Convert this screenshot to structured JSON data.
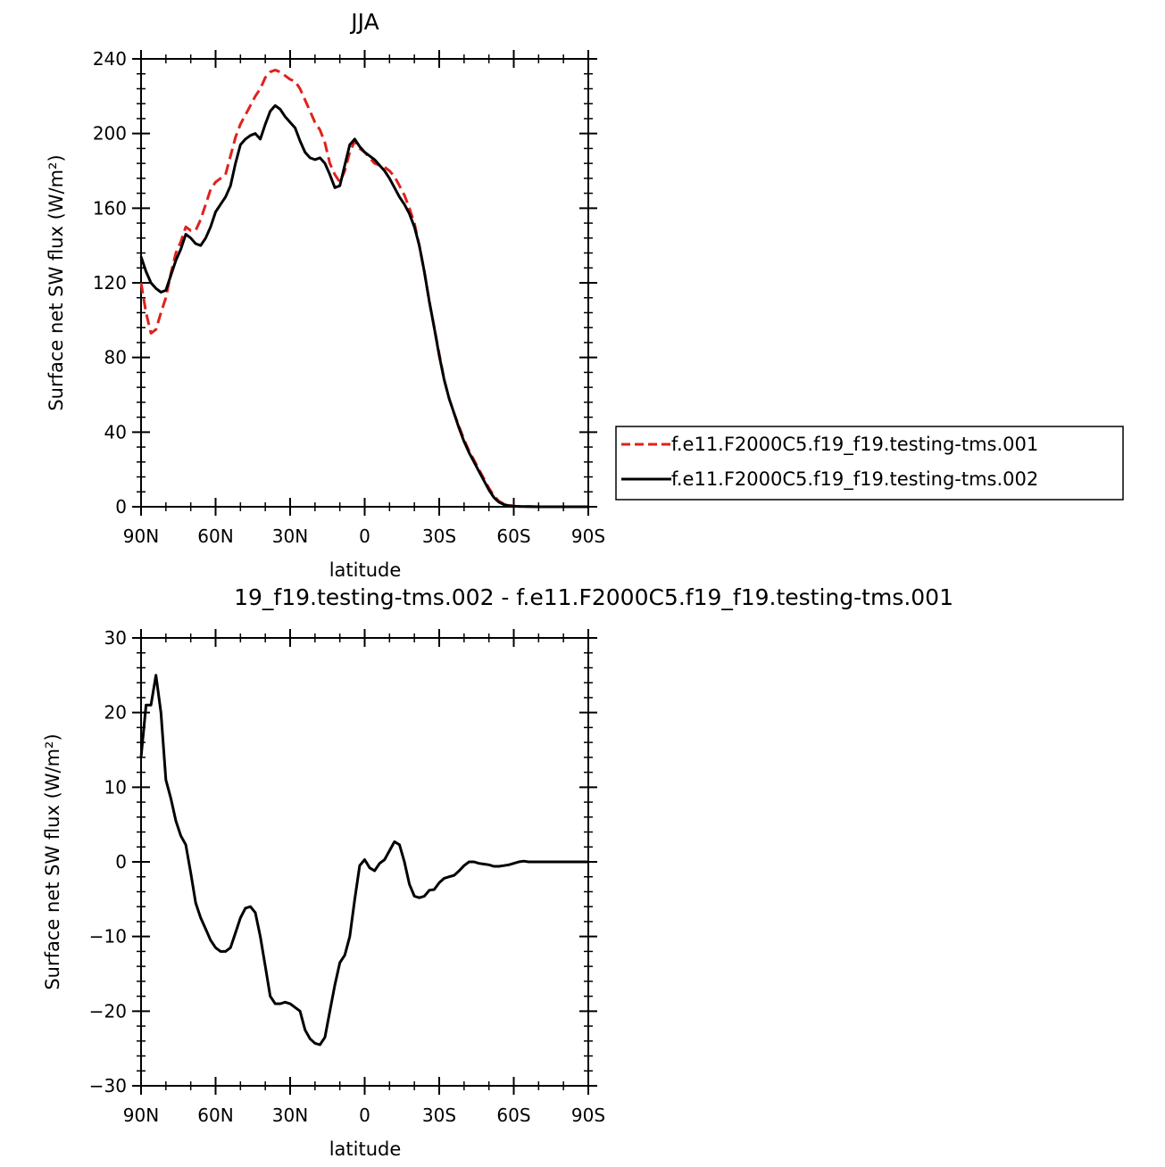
{
  "chart_data": [
    {
      "type": "line",
      "title": "JJA",
      "xlabel": "latitude",
      "ylabel": "Surface net SW flux (W/m²)",
      "xlim": [
        90,
        -90
      ],
      "ylim": [
        0,
        240
      ],
      "x_ticks": [
        90,
        60,
        30,
        0,
        -30,
        -60,
        -90
      ],
      "x_tick_labels": [
        "90N",
        "60N",
        "30N",
        "0",
        "30S",
        "60S",
        "90S"
      ],
      "y_ticks": [
        0,
        40,
        80,
        120,
        160,
        200,
        240
      ],
      "y_tick_labels": [
        "0",
        "40",
        "80",
        "120",
        "160",
        "200",
        "240"
      ],
      "grid": false,
      "legend": "right",
      "series": [
        {
          "name": "f.e11.F2000C5.f19_f19.testing-tms.001",
          "color": "#e0211d",
          "style": "dashed",
          "x": [
            90,
            88,
            86,
            84,
            82,
            80,
            78,
            76,
            74,
            72,
            70,
            68,
            66,
            64,
            62,
            60,
            58,
            56,
            54,
            52,
            50,
            48,
            46,
            44,
            42,
            40,
            38,
            36,
            34,
            32,
            30,
            28,
            26,
            24,
            22,
            20,
            18,
            16,
            14,
            12,
            10,
            8,
            6,
            4,
            2,
            0,
            -2,
            -4,
            -6,
            -8,
            -10,
            -12,
            -14,
            -16,
            -18,
            -20,
            -22,
            -24,
            -26,
            -28,
            -30,
            -32,
            -34,
            -36,
            -38,
            -40,
            -42,
            -44,
            -46,
            -48,
            -50,
            -52,
            -54,
            -56,
            -58,
            -60,
            -62,
            -64,
            -66,
            -68,
            -70,
            -72,
            -74,
            -76,
            -78,
            -80,
            -82,
            -84,
            -86,
            -88,
            -90
          ],
          "y": [
            120,
            104,
            93,
            95,
            104,
            112,
            125,
            136,
            142,
            150,
            148,
            148,
            154,
            162,
            170,
            174,
            176,
            178,
            188,
            198,
            205,
            210,
            215,
            220,
            224,
            230,
            233,
            234,
            233,
            231,
            229,
            228,
            224,
            218,
            212,
            206,
            202,
            195,
            184,
            178,
            174,
            180,
            190,
            196,
            192,
            190,
            187,
            184,
            183,
            182,
            180,
            177,
            172,
            167,
            160,
            152,
            140,
            126,
            110,
            96,
            82,
            68,
            58,
            50,
            43,
            36,
            30,
            25,
            20,
            15,
            10,
            6,
            3,
            1.5,
            0.8,
            0.4,
            0.2,
            0.1,
            0.1,
            0.05,
            0.02,
            0,
            0,
            0,
            0,
            0,
            0,
            0,
            0,
            0,
            0
          ]
        },
        {
          "name": "f.e11.F2000C5.f19_f19.testing-tms.002",
          "color": "#000000",
          "style": "solid",
          "x": [
            90,
            88,
            86,
            84,
            82,
            80,
            78,
            76,
            74,
            72,
            70,
            68,
            66,
            64,
            62,
            60,
            58,
            56,
            54,
            52,
            50,
            48,
            46,
            44,
            42,
            40,
            38,
            36,
            34,
            32,
            30,
            28,
            26,
            24,
            22,
            20,
            18,
            16,
            14,
            12,
            10,
            8,
            6,
            4,
            2,
            0,
            -2,
            -4,
            -6,
            -8,
            -10,
            -12,
            -14,
            -16,
            -18,
            -20,
            -22,
            -24,
            -26,
            -28,
            -30,
            -32,
            -34,
            -36,
            -38,
            -40,
            -42,
            -44,
            -46,
            -48,
            -50,
            -52,
            -54,
            -56,
            -58,
            -60,
            -62,
            -64,
            -66,
            -68,
            -70,
            -72,
            -74,
            -76,
            -78,
            -80,
            -82,
            -84,
            -86,
            -88,
            -90
          ],
          "y": [
            134,
            126,
            120,
            117,
            115,
            116,
            124,
            132,
            138,
            146,
            144,
            141,
            140,
            144,
            150,
            158,
            162,
            166,
            172,
            184,
            194,
            197,
            199,
            200,
            197,
            205,
            212,
            215,
            213,
            209,
            206,
            203,
            196,
            190,
            187,
            186,
            187,
            184,
            178,
            171,
            172,
            183,
            194,
            197,
            193,
            190,
            188,
            186,
            183,
            180,
            176,
            171,
            166,
            162,
            157,
            150,
            140,
            126,
            110,
            96,
            81,
            68,
            58,
            50,
            42,
            35,
            29,
            24,
            19,
            14,
            9,
            5,
            2.5,
            1.2,
            0.6,
            0.3,
            0.2,
            0.1,
            0.1,
            0.05,
            0.02,
            0,
            0,
            0,
            0,
            0,
            0,
            0,
            0,
            0,
            0
          ]
        }
      ]
    },
    {
      "type": "line",
      "title": "19_f19.testing-tms.002 - f.e11.F2000C5.f19_f19.testing-tms.001",
      "xlabel": "latitude",
      "ylabel": "Surface net SW flux (W/m²)",
      "xlim": [
        90,
        -90
      ],
      "ylim": [
        -30,
        30
      ],
      "x_ticks": [
        90,
        60,
        30,
        0,
        -30,
        -60,
        -90
      ],
      "x_tick_labels": [
        "90N",
        "60N",
        "30N",
        "0",
        "30S",
        "60S",
        "90S"
      ],
      "y_ticks": [
        -30,
        -20,
        -10,
        0,
        10,
        20,
        30
      ],
      "y_tick_labels": [
        "−30",
        "−20",
        "−10",
        "0",
        "10",
        "20",
        "30"
      ],
      "grid": false,
      "series": [
        {
          "color": "#000000",
          "style": "solid",
          "x": [
            90,
            88,
            86,
            84,
            82,
            80,
            78,
            76,
            74,
            72,
            70,
            68,
            66,
            64,
            62,
            60,
            58,
            56,
            54,
            52,
            50,
            48,
            46,
            44,
            42,
            40,
            38,
            36,
            34,
            32,
            30,
            28,
            26,
            24,
            22,
            20,
            18,
            16,
            14,
            12,
            10,
            8,
            6,
            4,
            2,
            0,
            -2,
            -4,
            -6,
            -8,
            -10,
            -12,
            -14,
            -16,
            -18,
            -20,
            -22,
            -24,
            -26,
            -28,
            -30,
            -32,
            -34,
            -36,
            -38,
            -40,
            -42,
            -44,
            -46,
            -48,
            -50,
            -52,
            -54,
            -56,
            -58,
            -60,
            -62,
            -64,
            -66,
            -68,
            -70,
            -72,
            -74,
            -76,
            -78,
            -80,
            -82,
            -84,
            -86,
            -88,
            -90
          ],
          "y": [
            14,
            21,
            21,
            25,
            20,
            11,
            8.5,
            5.5,
            3.5,
            2.3,
            -1.5,
            -5.5,
            -7.5,
            -9,
            -10.5,
            -11.5,
            -12,
            -12,
            -11.5,
            -9.5,
            -7.5,
            -6.2,
            -6,
            -6.8,
            -10,
            -14,
            -18,
            -19,
            -19,
            -18.8,
            -19,
            -19.5,
            -20,
            -22.5,
            -23.7,
            -24.3,
            -24.5,
            -23.5,
            -20,
            -16.5,
            -13.5,
            -12.5,
            -10,
            -5,
            -0.5,
            0.3,
            -0.8,
            -1.2,
            -0.2,
            0.3,
            1.5,
            2.7,
            2.3,
            0,
            -3,
            -4.6,
            -4.8,
            -4.6,
            -3.8,
            -3.7,
            -2.8,
            -2.2,
            -2,
            -1.8,
            -1.2,
            -0.5,
            0,
            0,
            -0.2,
            -0.3,
            -0.4,
            -0.6,
            -0.6,
            -0.5,
            -0.4,
            -0.2,
            0,
            0.1,
            0,
            0,
            0,
            0,
            0,
            0,
            0,
            0,
            0,
            0,
            0,
            0,
            0
          ]
        }
      ]
    }
  ]
}
